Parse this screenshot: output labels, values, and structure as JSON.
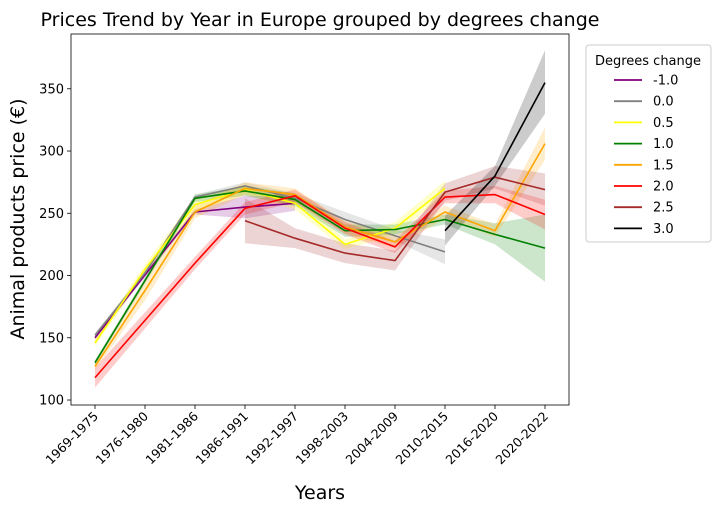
{
  "chart_data": {
    "type": "line",
    "title": "Prices Trend by Year in Europe grouped by degrees change",
    "xlabel": "Years",
    "ylabel": "Animal products price (€)",
    "categories": [
      "1969-1975",
      "1976-1980",
      "1981-1986",
      "1986-1991",
      "1992-1997",
      "1998-2003",
      "2004-2009",
      "2010-2015",
      "2016-2020",
      "2020-2022"
    ],
    "ylim": [
      96,
      394
    ],
    "yticks": [
      100,
      150,
      200,
      250,
      300,
      350
    ],
    "grid": false,
    "legend": {
      "title": "Degrees change",
      "placement": "outside-right-top"
    },
    "series": [
      {
        "name": "-1.0",
        "color": "#800080",
        "values": [
          150,
          null,
          251,
          255,
          258,
          null,
          null,
          null,
          null,
          null
        ],
        "lower": [
          148,
          null,
          249,
          246,
          252,
          null,
          null,
          null,
          null,
          null
        ],
        "upper": [
          153,
          null,
          253,
          264,
          263,
          null,
          null,
          null,
          null,
          null
        ]
      },
      {
        "name": "0.0",
        "color": "#808080",
        "values": [
          152,
          202,
          263,
          272,
          262,
          245,
          232,
          219,
          null,
          null
        ],
        "lower": [
          150,
          200,
          261,
          269,
          258,
          239,
          228,
          209,
          null,
          null
        ],
        "upper": [
          154,
          204,
          265,
          275,
          266,
          251,
          237,
          229,
          null,
          null
        ]
      },
      {
        "name": "0.5",
        "color": "#ffff00",
        "values": [
          146,
          205,
          257,
          269,
          258,
          225,
          238,
          270,
          null,
          null
        ],
        "lower": [
          143,
          201,
          251,
          265,
          253,
          221,
          233,
          264,
          null,
          null
        ],
        "upper": [
          149,
          209,
          263,
          273,
          264,
          229,
          243,
          276,
          null,
          null
        ]
      },
      {
        "name": "1.0",
        "color": "#008000",
        "values": [
          130,
          null,
          262,
          268,
          261,
          236,
          237,
          245,
          233,
          222
        ],
        "lower": [
          128,
          null,
          259,
          264,
          256,
          231,
          233,
          241,
          225,
          195
        ],
        "upper": [
          132,
          null,
          265,
          272,
          266,
          241,
          241,
          249,
          242,
          249
        ]
      },
      {
        "name": "1.5",
        "color": "#ffa500",
        "values": [
          127,
          188,
          251,
          270,
          265,
          239,
          227,
          251,
          236,
          306
        ],
        "lower": [
          124,
          180,
          246,
          265,
          260,
          234,
          222,
          246,
          231,
          293
        ],
        "upper": [
          130,
          196,
          256,
          275,
          270,
          244,
          232,
          256,
          241,
          319
        ]
      },
      {
        "name": "2.0",
        "color": "#ff0000",
        "values": [
          118,
          null,
          210,
          254,
          264,
          238,
          223,
          263,
          265,
          249
        ],
        "lower": [
          110,
          null,
          205,
          249,
          259,
          233,
          218,
          258,
          258,
          237
        ],
        "upper": [
          126,
          null,
          215,
          259,
          269,
          243,
          228,
          268,
          272,
          261
        ]
      },
      {
        "name": "2.5",
        "color": "#a52a2a",
        "values": [
          null,
          null,
          null,
          244,
          230,
          218,
          212,
          267,
          279,
          269
        ],
        "lower": [
          null,
          null,
          null,
          226,
          222,
          210,
          204,
          260,
          270,
          256
        ],
        "upper": [
          null,
          null,
          null,
          262,
          238,
          226,
          220,
          274,
          288,
          282
        ]
      },
      {
        "name": "3.0",
        "color": "#000000",
        "values": [
          null,
          null,
          null,
          null,
          null,
          null,
          null,
          236,
          280,
          355
        ],
        "lower": [
          null,
          null,
          null,
          null,
          null,
          null,
          null,
          224,
          272,
          330
        ],
        "upper": [
          null,
          null,
          null,
          null,
          null,
          null,
          null,
          248,
          288,
          381
        ]
      }
    ]
  }
}
